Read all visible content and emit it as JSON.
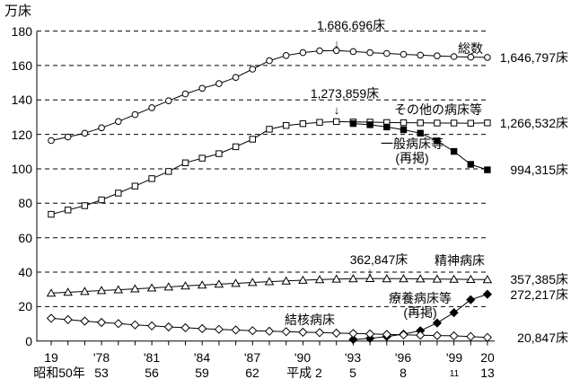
{
  "page": {
    "background": "#ffffff",
    "ink": "#000000"
  },
  "chart_data": {
    "type": "line",
    "title": "",
    "y_axis_unit_label": "万床",
    "unit": "万床",
    "ylim": [
      0,
      180
    ],
    "y_ticks": [
      0,
      20,
      40,
      60,
      80,
      100,
      120,
      140,
      160,
      180
    ],
    "grid": "horizontal-dashed",
    "legend_position": "inline-labels",
    "x_years_range": [
      1975,
      2001
    ],
    "x_ticks": [
      {
        "year": 1975,
        "west": "19",
        "era": "昭和50年"
      },
      {
        "year": 1978,
        "west": "'78",
        "era": "53"
      },
      {
        "year": 1981,
        "west": "'81",
        "era": "56"
      },
      {
        "year": 1984,
        "west": "'84",
        "era": "59"
      },
      {
        "year": 1987,
        "west": "'87",
        "era": "62"
      },
      {
        "year": 1990,
        "west": "'90",
        "era": "平成 2"
      },
      {
        "year": 1993,
        "west": "'93",
        "era": "5"
      },
      {
        "year": 1996,
        "west": "'96",
        "era": "8"
      },
      {
        "year": 1999,
        "west": "'99",
        "era": "11"
      },
      {
        "year": 2001,
        "west": "20",
        "era": "13"
      }
    ],
    "series": [
      {
        "name": "sousuu",
        "label": "総数",
        "marker": "circle-open",
        "start_year": 1975,
        "values": [
          116.4,
          118.5,
          120.7,
          123.8,
          127.5,
          131.5,
          135.5,
          139.5,
          143.5,
          146.8,
          149.5,
          153.1,
          157.9,
          162.8,
          165.8,
          167.5,
          168.5,
          168.7,
          168.1,
          167.5,
          167.0,
          166.5,
          166.0,
          165.6,
          165.2,
          164.9,
          164.7
        ],
        "end_label": "1,646,797床",
        "peak": {
          "label": "1,686,696床",
          "year": 1992
        }
      },
      {
        "name": "sonota-byosho",
        "label": "その他の病床等",
        "marker": "square-open",
        "start_year": 1975,
        "values": [
          73.6,
          76.1,
          78.6,
          82.0,
          85.9,
          90.0,
          94.3,
          98.5,
          103.5,
          106.2,
          108.8,
          112.8,
          117.2,
          123.0,
          125.2,
          126.2,
          127.0,
          127.4,
          127.2,
          127.1,
          126.9,
          126.8,
          126.7,
          126.6,
          126.6,
          126.5,
          126.7
        ],
        "end_label": "1,266,532床",
        "peak": {
          "label": "1,273,859床",
          "year": 1992
        }
      },
      {
        "name": "ippan-byosho",
        "label": "一般病床等",
        "label2": "(再掲)",
        "marker": "square-filled",
        "start_year": 1993,
        "values": [
          126.3,
          125.6,
          124.3,
          122.7,
          120.7,
          116.2,
          110.1,
          102.6,
          99.4
        ],
        "end_label": "994,315床"
      },
      {
        "name": "seishin-byosho",
        "label": "精神病床",
        "marker": "triangle-open",
        "start_year": 1975,
        "values": [
          27.8,
          28.3,
          28.8,
          29.3,
          29.8,
          30.3,
          30.8,
          31.4,
          32.0,
          32.5,
          33.0,
          33.5,
          34.0,
          34.5,
          34.9,
          35.3,
          35.7,
          36.0,
          36.2,
          36.3,
          36.2,
          36.2,
          36.1,
          36.0,
          35.9,
          35.8,
          35.7
        ],
        "end_label": "357,385床",
        "peak": {
          "label": "362,847床",
          "year": 1994
        }
      },
      {
        "name": "ryoyo-byosho",
        "label": "療養病床等",
        "label2": "(再掲)",
        "marker": "diamond-filled",
        "start_year": 1993,
        "values": [
          0.9,
          1.5,
          2.6,
          4.0,
          6.0,
          10.5,
          16.5,
          24.0,
          27.2
        ],
        "end_label": "272,217床"
      },
      {
        "name": "kekkaku-byosho",
        "label": "結核病床",
        "marker": "diamond-open",
        "start_year": 1975,
        "values": [
          13.2,
          12.4,
          11.6,
          10.8,
          10.1,
          9.4,
          8.8,
          8.2,
          7.7,
          7.2,
          6.8,
          6.4,
          6.0,
          5.7,
          5.4,
          5.1,
          4.9,
          4.6,
          4.4,
          4.1,
          3.8,
          3.6,
          3.4,
          3.2,
          3.0,
          2.6,
          2.1
        ],
        "end_label": "20,847床"
      }
    ]
  }
}
